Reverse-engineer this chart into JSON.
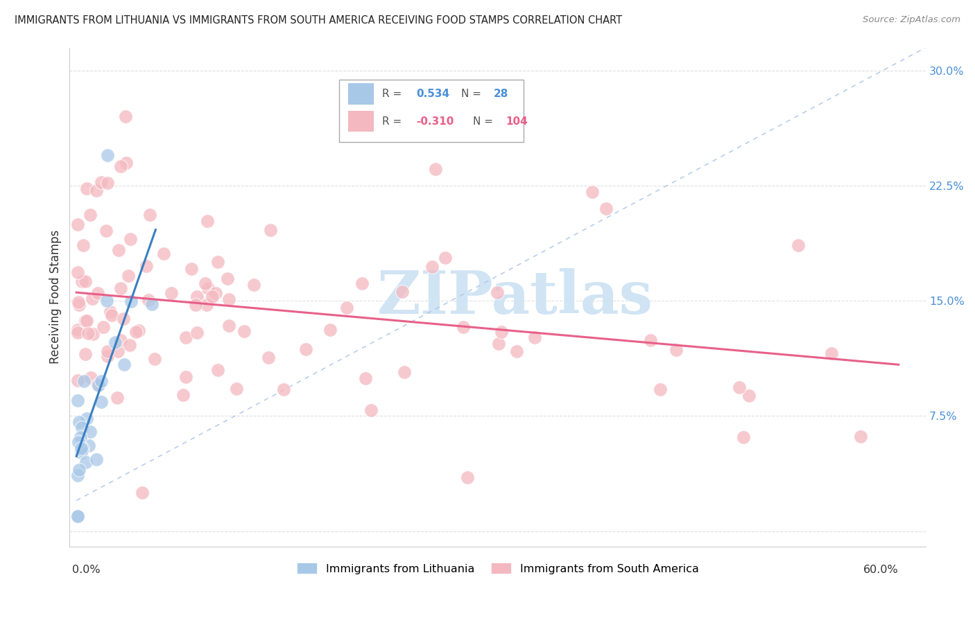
{
  "title": "IMMIGRANTS FROM LITHUANIA VS IMMIGRANTS FROM SOUTH AMERICA RECEIVING FOOD STAMPS CORRELATION CHART",
  "source": "Source: ZipAtlas.com",
  "ylabel": "Receiving Food Stamps",
  "yticks": [
    0.0,
    0.075,
    0.15,
    0.225,
    0.3
  ],
  "ytick_labels": [
    "",
    "7.5%",
    "15.0%",
    "22.5%",
    "30.0%"
  ],
  "r_lithuania": 0.534,
  "n_lithuania": 28,
  "r_south_america": -0.31,
  "n_south_america": 104,
  "blue_scatter_color": "#a8c8e8",
  "pink_scatter_color": "#f4b8c0",
  "blue_line_color": "#3a7fc1",
  "pink_line_color": "#e8608a",
  "dashed_line_color": "#b0c8e8",
  "watermark_color": "#d0e4f4",
  "background_color": "#ffffff",
  "grid_color": "#e0e0e0",
  "xlim": [
    -0.005,
    0.62
  ],
  "ylim": [
    -0.01,
    0.315
  ],
  "blue_r_color": "#4a90d9",
  "pink_r_color": "#e8608a"
}
